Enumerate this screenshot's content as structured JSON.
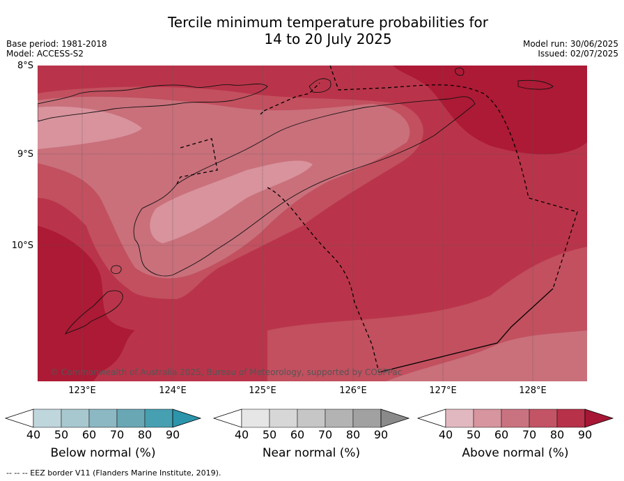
{
  "title_line1": "Tercile minimum temperature probabilities for",
  "title_line2": "14 to 20 July 2025",
  "base_period": "Base period: 1981-2018",
  "model": "Model: ACCESS-S2",
  "model_run": "Model run: 30/06/2025",
  "issued": "Issued: 02/07/2025",
  "lat_labels": [
    "8°S",
    "9°S",
    "10°S"
  ],
  "lon_labels": [
    "123°E",
    "124°E",
    "125°E",
    "126°E",
    "127°E",
    "128°E"
  ],
  "copyright": "© Commonwealth of Australia 2025, Bureau of Meteorology, supported by COSPPac",
  "colorbars": [
    {
      "label": "Below normal (%)",
      "ticks": [
        "40",
        "50",
        "60",
        "70",
        "80",
        "90"
      ],
      "colors": [
        "#ffffff",
        "#bfd6dd",
        "#a7c8cf",
        "#8cb8c3",
        "#6aa7b5",
        "#46a0b2",
        "#2c95ab"
      ]
    },
    {
      "label": "Near normal (%)",
      "ticks": [
        "40",
        "50",
        "60",
        "70",
        "80",
        "90"
      ],
      "colors": [
        "#ffffff",
        "#e6e6e6",
        "#d7d7d7",
        "#c6c6c6",
        "#b3b3b3",
        "#a1a1a1",
        "#8a8a8a"
      ]
    },
    {
      "label": "Above normal (%)",
      "ticks": [
        "40",
        "50",
        "60",
        "70",
        "80",
        "90"
      ],
      "colors": [
        "#ffffff",
        "#e2b8c0",
        "#d7959f",
        "#ca7380",
        "#c35465",
        "#b73149",
        "#a71735"
      ]
    }
  ],
  "footnote": "--  --  -- EEZ border V11 (Flanders Marine Institute, 2019).",
  "colors": {
    "cat50": "#d8939d",
    "cat60": "#c9707b",
    "cat70": "#c2505f",
    "cat80": "#b9344a",
    "cat90": "#ac1a35"
  }
}
